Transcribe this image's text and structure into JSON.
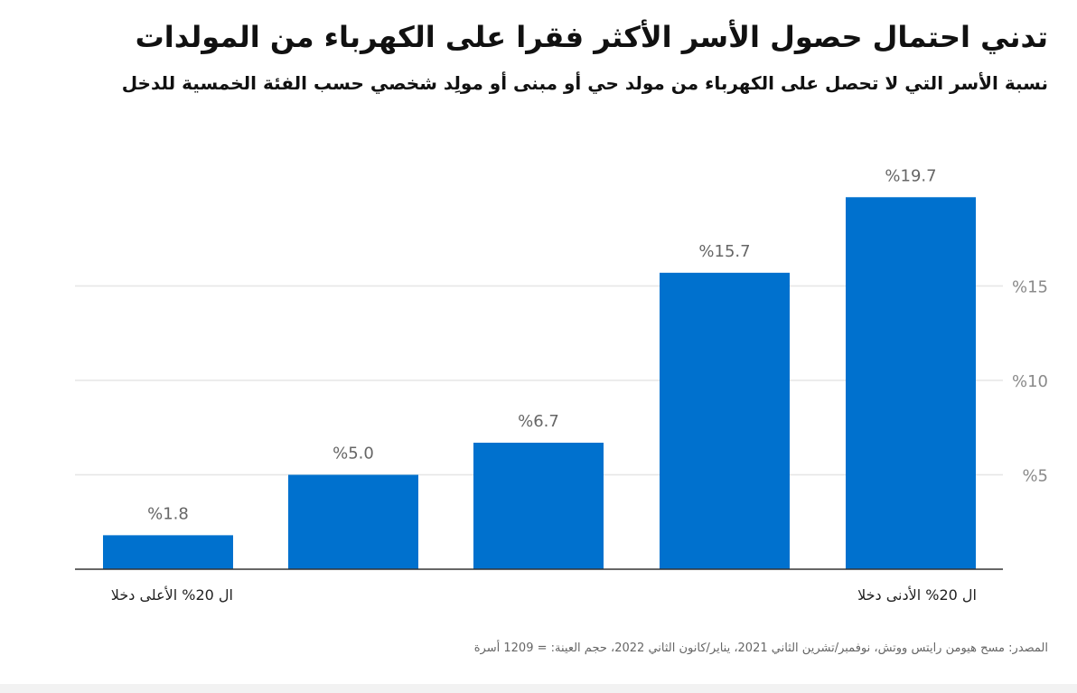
{
  "chart_data": {
    "type": "bar",
    "title": "تدني احتمال حصول الأسر الأكثر فقرا على الكهرباء من المولدات",
    "subtitle": "نسبة الأسر التي لا تحصل على الكهرباء من مولد حي أو مبنى أو مولِد شخصي حسب الفئة الخمسية للدخل",
    "categories": [
      "ال 20% الأعلى دخلا",
      "",
      "",
      "",
      "ال 20% الأدنى دخلا"
    ],
    "values": [
      1.8,
      5.0,
      6.7,
      15.7,
      19.7
    ],
    "value_labels": [
      "%1.8",
      "%5.0",
      "%6.7",
      "%15.7",
      "%19.7"
    ],
    "yaxis": {
      "ticks": [
        5,
        10,
        15
      ],
      "tick_labels": [
        "%5",
        "%10",
        "%15"
      ],
      "ylim": [
        0,
        21
      ],
      "position": "right"
    },
    "grid": true,
    "bar_color": "#0071ce",
    "gridline_color": "#e6e6e6",
    "axis_color": "#333333",
    "label_color": "#666666",
    "tick_color": "#8a8a8a",
    "source": "المصدر: مسح هيومن رايتس ووتش، نوفمبر/تشرين الثاني 2021، يناير/كانون الثاني 2022، حجم العينة: = 1209 أسرة"
  }
}
